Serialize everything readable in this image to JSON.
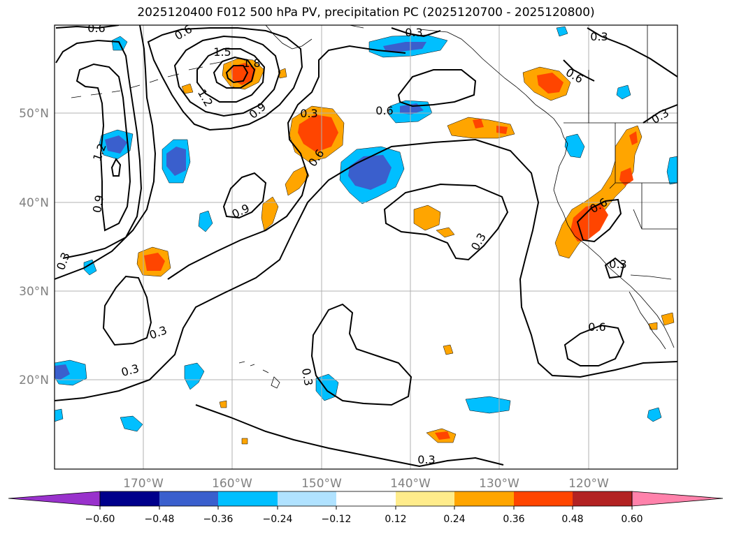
{
  "title": "2025120400 F012 500 hPa PV, precipitation PC (2025120700 - 2025120800)",
  "map": {
    "longitude_labels": [
      "170°W",
      "160°W",
      "150°W",
      "140°W",
      "130°W",
      "120°W"
    ],
    "latitude_labels": [
      "50°N",
      "40°N",
      "30°N",
      "20°N"
    ],
    "contour_labels": [
      "0.6",
      "0.3",
      "1.5",
      "1.8",
      "1.2",
      "0.9",
      "0.3",
      "0.6",
      "0.6",
      "0.3",
      "0.6",
      "0.9",
      "0.9",
      "1.2",
      "0.3",
      "0.3",
      "0.3",
      "0.3",
      "0.3",
      "0.6",
      "0.3",
      "0.6",
      "0.3",
      "0.3",
      "0.6"
    ]
  },
  "colorbar": {
    "ticks": [
      "−0.60",
      "−0.48",
      "−0.36",
      "−0.24",
      "−0.12",
      "0.12",
      "0.24",
      "0.36",
      "0.48",
      "0.60"
    ],
    "colors": [
      "#9932cc",
      "#00008b",
      "#3a5fcd",
      "#00bfff",
      "#b0e2ff",
      "#ffffff",
      "#ffec8b",
      "#ffa500",
      "#ff4500",
      "#b22222",
      "#ff82ab"
    ]
  },
  "colors": {
    "neg_weak": "#00bfff",
    "neg_mid": "#3a5fcd",
    "pos_weak": "#ffa500",
    "pos_mid": "#ff4500",
    "pos_light": "#ffec8b",
    "contour": "#000000",
    "grid": "#b0b0b0"
  }
}
